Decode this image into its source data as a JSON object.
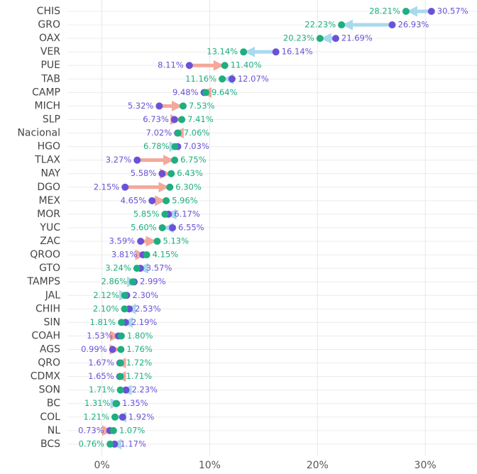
{
  "chart_data": {
    "type": "dumbbell",
    "categories": [
      "CHIS",
      "GRO",
      "OAX",
      "VER",
      "PUE",
      "TAB",
      "CAMP",
      "MICH",
      "SLP",
      "Nacional",
      "HGO",
      "TLAX",
      "NAY",
      "DGO",
      "MEX",
      "MOR",
      "YUC",
      "ZAC",
      "QROO",
      "GTO",
      "TAMPS",
      "JAL",
      "CHIH",
      "SIN",
      "COAH",
      "AGS",
      "QRO",
      "CDMX",
      "SON",
      "BC",
      "COL",
      "NL",
      "BCS"
    ],
    "series": [
      {
        "color": "#6a52d8",
        "values": [
          30.57,
          26.93,
          21.69,
          16.14,
          8.11,
          12.07,
          9.48,
          5.32,
          6.73,
          7.02,
          7.03,
          3.27,
          5.58,
          2.15,
          4.65,
          6.17,
          6.55,
          3.59,
          3.81,
          3.57,
          2.99,
          2.3,
          2.53,
          2.19,
          1.53,
          0.99,
          1.67,
          1.65,
          2.23,
          1.35,
          1.92,
          0.73,
          1.17
        ],
        "value_labels": [
          "30.57%",
          "26.93%",
          "21.69%",
          "16.14%",
          "8.11%",
          "12.07%",
          "9.48%",
          "5.32%",
          "6.73%",
          "7.02%",
          "7.03%",
          "3.27%",
          "5.58%",
          "2.15%",
          "4.65%",
          "6.17%",
          "6.55%",
          "3.59%",
          "3.81%",
          "3.57%",
          "2.99%",
          "2.30%",
          "2.53%",
          "2.19%",
          "1.53%",
          "0.99%",
          "1.67%",
          "1.65%",
          "2.23%",
          "1.35%",
          "1.92%",
          "0.73%",
          "1.17%"
        ]
      },
      {
        "color": "#1fae80",
        "values": [
          28.21,
          22.23,
          20.23,
          13.14,
          11.4,
          11.16,
          9.64,
          7.53,
          7.41,
          7.06,
          6.78,
          6.75,
          6.43,
          6.3,
          5.96,
          5.85,
          5.6,
          5.13,
          4.15,
          3.24,
          2.86,
          2.12,
          2.1,
          1.81,
          1.8,
          1.76,
          1.72,
          1.71,
          1.71,
          1.31,
          1.21,
          1.07,
          0.76
        ],
        "value_labels": [
          "28.21%",
          "22.23%",
          "20.23%",
          "13.14%",
          "11.40%",
          "11.16%",
          "9.64%",
          "7.53%",
          "7.41%",
          "7.06%",
          "6.78%",
          "6.75%",
          "6.43%",
          "6.30%",
          "5.96%",
          "5.85%",
          "5.60%",
          "5.13%",
          "4.15%",
          "3.24%",
          "2.86%",
          "2.12%",
          "2.10%",
          "1.81%",
          "1.80%",
          "1.76%",
          "1.72%",
          "1.71%",
          "1.71%",
          "1.31%",
          "1.21%",
          "1.07%",
          "0.76%"
        ]
      }
    ],
    "increase_color": "#f3a89a",
    "decrease_color": "#a9d9ee",
    "xlim": [
      -3.2,
      34.8
    ],
    "xticks": [
      {
        "value": 0,
        "label": "0%"
      },
      {
        "value": 10,
        "label": "10%"
      },
      {
        "value": 20,
        "label": "20%"
      },
      {
        "value": 30,
        "label": "30%"
      }
    ],
    "grid": true
  }
}
